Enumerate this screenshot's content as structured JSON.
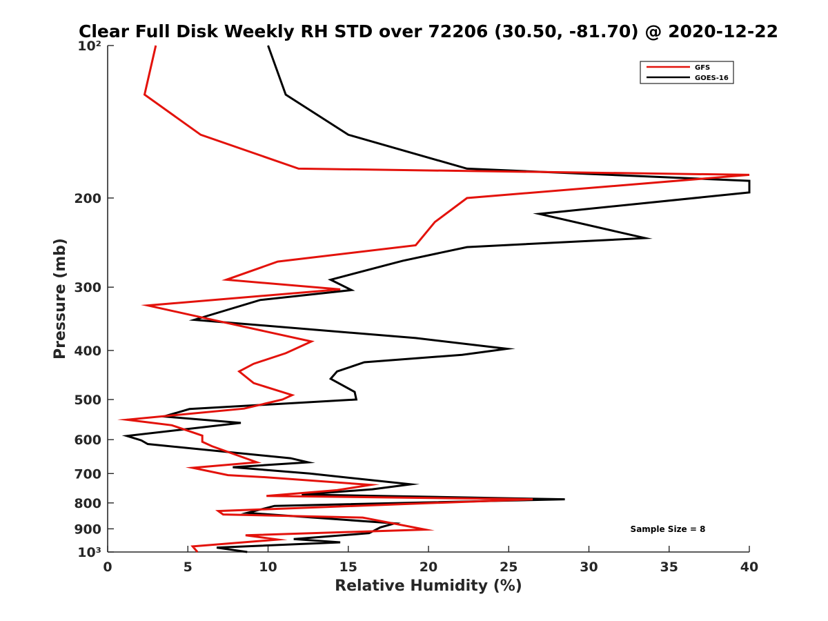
{
  "chart_data": {
    "type": "line",
    "title": "Clear Full Disk Weekly RH STD over 72206 (30.50, -81.70) @ 2020-12-22",
    "xlabel": "Relative Humidity (%)",
    "ylabel": "Pressure (mb)",
    "xlim": [
      0,
      40
    ],
    "ylim": [
      100,
      1000
    ],
    "yscale": "log",
    "y_reversed": true,
    "grid": false,
    "legend_position": "top-right",
    "x_ticks": [
      0,
      5,
      10,
      15,
      20,
      25,
      30,
      35,
      40
    ],
    "x_tick_labels": [
      "0",
      "5",
      "10",
      "15",
      "20",
      "25",
      "30",
      "35",
      "40"
    ],
    "y_ticks": [
      100,
      200,
      300,
      400,
      500,
      600,
      700,
      800,
      900,
      1000
    ],
    "y_tick_labels": [
      "10²",
      "200",
      "300",
      "400",
      "500",
      "600",
      "700",
      "800",
      "900",
      "10³"
    ],
    "annotation": "Sample Size = 8",
    "series": [
      {
        "name": "GFS",
        "color": "#e3120b",
        "points": [
          [
            3.0,
            100
          ],
          [
            2.3,
            125
          ],
          [
            5.8,
            150
          ],
          [
            11.9,
            175
          ],
          [
            40.0,
            180
          ],
          [
            22.4,
            200
          ],
          [
            20.4,
            223
          ],
          [
            19.2,
            248
          ],
          [
            10.6,
            267
          ],
          [
            7.4,
            290
          ],
          [
            14.5,
            303
          ],
          [
            2.5,
            326
          ],
          [
            6.9,
            350
          ],
          [
            12.7,
            384
          ],
          [
            11.1,
            405
          ],
          [
            9.1,
            425
          ],
          [
            8.2,
            440
          ],
          [
            9.1,
            464
          ],
          [
            11.5,
            490
          ],
          [
            10.9,
            500
          ],
          [
            8.5,
            521
          ],
          [
            1.2,
            548
          ],
          [
            4.0,
            562
          ],
          [
            5.9,
            589
          ],
          [
            5.9,
            606
          ],
          [
            6.5,
            618
          ],
          [
            9.3,
            665
          ],
          [
            5.3,
            682
          ],
          [
            7.5,
            705
          ],
          [
            9.9,
            712
          ],
          [
            16.4,
            737
          ],
          [
            14.3,
            755
          ],
          [
            9.9,
            775
          ],
          [
            26.5,
            787
          ],
          [
            6.9,
            830
          ],
          [
            7.2,
            843
          ],
          [
            15.9,
            855
          ],
          [
            19.8,
            903
          ],
          [
            8.6,
            927
          ],
          [
            10.6,
            945
          ],
          [
            5.3,
            975
          ],
          [
            5.6,
            1000
          ]
        ]
      },
      {
        "name": "GOES-16",
        "color": "#000000",
        "points": [
          [
            10.0,
            100
          ],
          [
            11.1,
            125
          ],
          [
            15.0,
            150
          ],
          [
            22.4,
            175
          ],
          [
            40.0,
            185
          ],
          [
            40.0,
            195
          ],
          [
            26.9,
            215
          ],
          [
            33.5,
            240
          ],
          [
            22.4,
            250
          ],
          [
            18.4,
            266
          ],
          [
            13.9,
            290
          ],
          [
            15.2,
            304
          ],
          [
            9.5,
            318
          ],
          [
            5.4,
            348
          ],
          [
            19.2,
            378
          ],
          [
            24.9,
            397
          ],
          [
            22.1,
            408
          ],
          [
            16.0,
            422
          ],
          [
            14.3,
            440
          ],
          [
            13.9,
            455
          ],
          [
            15.4,
            483
          ],
          [
            15.5,
            500
          ],
          [
            5.1,
            522
          ],
          [
            3.5,
            540
          ],
          [
            8.3,
            556
          ],
          [
            1.2,
            590
          ],
          [
            2.1,
            602
          ],
          [
            2.5,
            612
          ],
          [
            11.4,
            653
          ],
          [
            12.5,
            665
          ],
          [
            7.8,
            680
          ],
          [
            12.6,
            700
          ],
          [
            18.9,
            735
          ],
          [
            16.5,
            752
          ],
          [
            12.1,
            770
          ],
          [
            28.5,
            787
          ],
          [
            10.4,
            811
          ],
          [
            8.7,
            837
          ],
          [
            17.9,
            878
          ],
          [
            17.0,
            894
          ],
          [
            16.3,
            918
          ],
          [
            11.6,
            943
          ],
          [
            14.5,
            957
          ],
          [
            6.8,
            980
          ],
          [
            8.7,
            1000
          ]
        ]
      }
    ]
  }
}
